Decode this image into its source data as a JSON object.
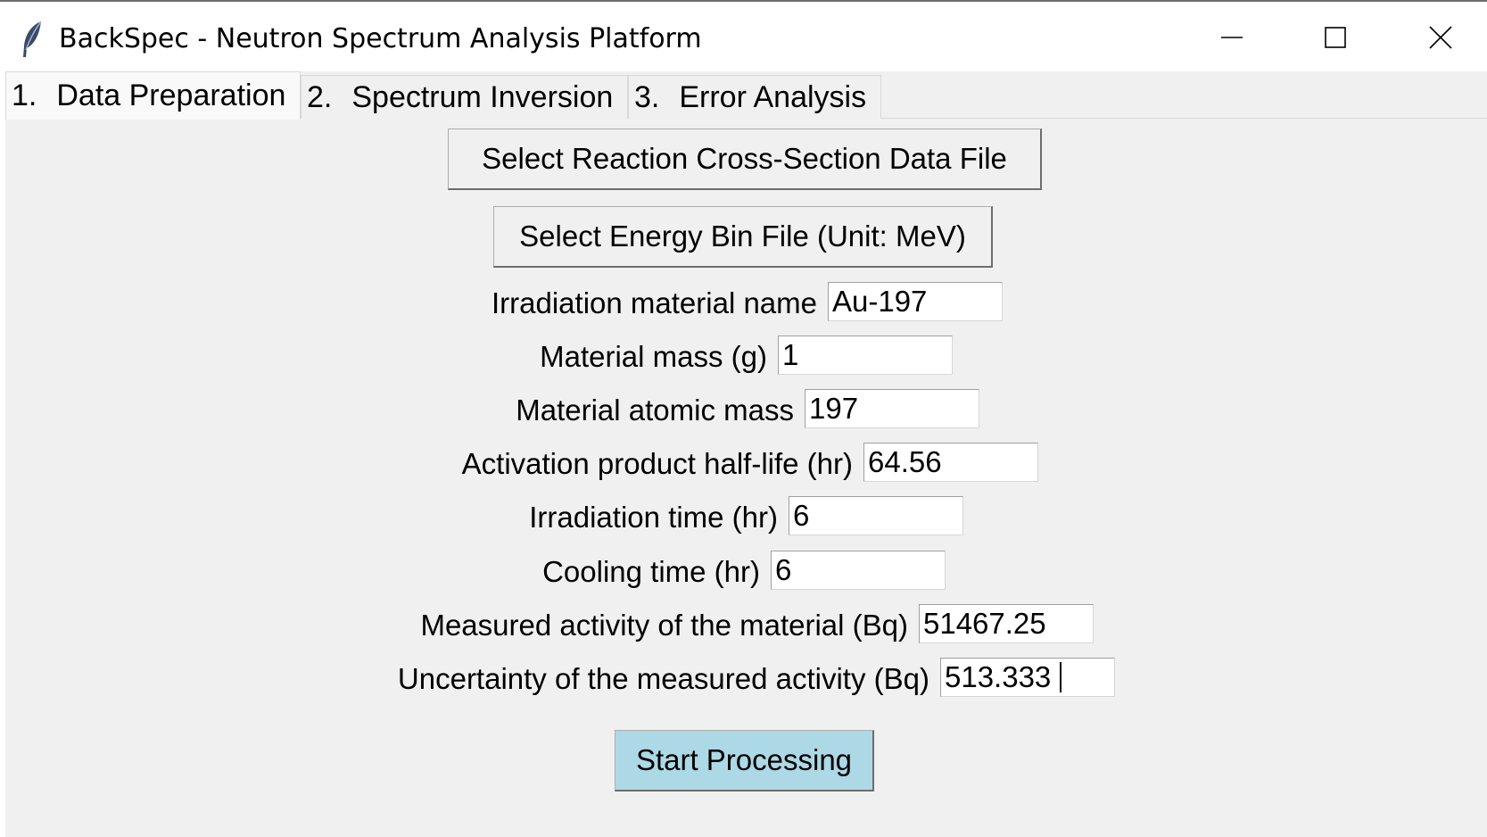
{
  "window": {
    "title": "BackSpec - Neutron Spectrum Analysis Platform",
    "icon": "feather-icon",
    "controls": [
      "minimize-icon",
      "maximize-icon",
      "close-icon"
    ]
  },
  "tabs": [
    {
      "num": "1.",
      "label": "Data Preparation",
      "active": true
    },
    {
      "num": "2.",
      "label": "Spectrum Inversion",
      "active": false
    },
    {
      "num": "3.",
      "label": "Error Analysis",
      "active": false
    }
  ],
  "buttons": {
    "cross_section": "Select Reaction Cross-Section Data File",
    "energy_bin": "Select Energy Bin File (Unit: MeV)",
    "start": "Start Processing"
  },
  "form": {
    "material_name": {
      "label": "Irradiation material name",
      "value": "Au-197"
    },
    "material_mass": {
      "label": "Material mass (g)",
      "value": "1"
    },
    "atomic_mass": {
      "label": "Material atomic mass",
      "value": "197"
    },
    "half_life": {
      "label": "Activation product half-life (hr)",
      "value": "64.56"
    },
    "irradiation_time": {
      "label": "Irradiation time (hr)",
      "value": "6"
    },
    "cooling_time": {
      "label": "Cooling time (hr)",
      "value": "6"
    },
    "measured_activity": {
      "label": "Measured activity of the material (Bq)",
      "value": "51467.25"
    },
    "activity_uncertainty": {
      "label": "Uncertainty of the measured activity (Bq)",
      "value": "513.333"
    }
  },
  "colors": {
    "start_button": "#add8e6",
    "client_bg": "#f0f0f0"
  }
}
